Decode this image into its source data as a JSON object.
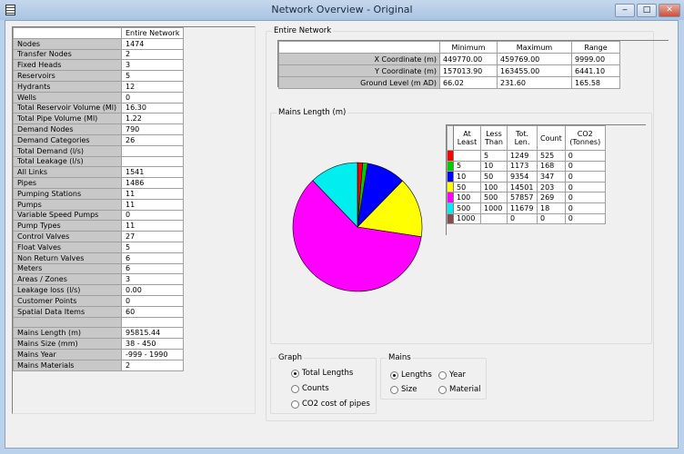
{
  "window": {
    "title": "Network Overview - Original",
    "icon": "table-grid-icon",
    "controls": [
      "minimize",
      "maximize",
      "close"
    ]
  },
  "stats": {
    "header": "Entire Network",
    "rows": [
      [
        "Nodes",
        "1474"
      ],
      [
        "Transfer Nodes",
        "2"
      ],
      [
        "Fixed Heads",
        "3"
      ],
      [
        "Reservoirs",
        "5"
      ],
      [
        "Hydrants",
        "12"
      ],
      [
        "Wells",
        "0"
      ],
      [
        "Total Reservoir Volume (Ml)",
        "16.30"
      ],
      [
        "Total Pipe Volume (Ml)",
        "1.22"
      ],
      [
        "Demand Nodes",
        "790"
      ],
      [
        "Demand Categories",
        "26"
      ],
      [
        "Total Demand (l/s)",
        ""
      ],
      [
        "Total Leakage (l/s)",
        ""
      ],
      [
        "All Links",
        "1541"
      ],
      [
        "Pipes",
        "1486"
      ],
      [
        "Pumping Stations",
        "11"
      ],
      [
        "Pumps",
        "11"
      ],
      [
        "Variable Speed Pumps",
        "0"
      ],
      [
        "Pump Types",
        "11"
      ],
      [
        "Control Valves",
        "27"
      ],
      [
        "Float Valves",
        "5"
      ],
      [
        "Non Return Valves",
        "6"
      ],
      [
        "Meters",
        "6"
      ],
      [
        "Areas / Zones",
        "3"
      ],
      [
        "Leakage loss (l/s)",
        "0.00"
      ],
      [
        "Customer Points",
        "0"
      ],
      [
        "Spatial Data Items",
        "60"
      ],
      [
        "",
        ""
      ],
      [
        "Mains Length (m)",
        "95815.44"
      ],
      [
        "Mains Size (mm)",
        "38 - 450"
      ],
      [
        "Mains Year",
        "-999 - 1990"
      ],
      [
        "Mains Materials",
        "2"
      ]
    ]
  },
  "entire_network": {
    "label": "Entire Network",
    "columns": [
      "Minimum",
      "Maximum",
      "Range"
    ],
    "rows": [
      [
        "X Coordinate (m)",
        "449770.00",
        "459769.00",
        "9999.00"
      ],
      [
        "Y Coordinate (m)",
        "157013.90",
        "163455.00",
        "6441.10"
      ],
      [
        "Ground Level (m AD)",
        "66.02",
        "231.60",
        "165.58"
      ]
    ]
  },
  "mains_length": {
    "label": "Mains Length (m)",
    "columns": [
      "At Least",
      "Less Than",
      "Tot. Len.",
      "Count",
      "CO2 (Tonnes)"
    ],
    "rows": [
      {
        "color": "#ff0000",
        "at_least": "",
        "less_than": "5",
        "tot_len": "1249",
        "count": "525",
        "co2": "0"
      },
      {
        "color": "#00cc00",
        "at_least": "5",
        "less_than": "10",
        "tot_len": "1173",
        "count": "168",
        "co2": "0"
      },
      {
        "color": "#0000ff",
        "at_least": "10",
        "less_than": "50",
        "tot_len": "9354",
        "count": "347",
        "co2": "0"
      },
      {
        "color": "#ffff00",
        "at_least": "50",
        "less_than": "100",
        "tot_len": "14501",
        "count": "203",
        "co2": "0"
      },
      {
        "color": "#ff00ff",
        "at_least": "100",
        "less_than": "500",
        "tot_len": "57857",
        "count": "269",
        "co2": "0"
      },
      {
        "color": "#00eeee",
        "at_least": "500",
        "less_than": "1000",
        "tot_len": "11679",
        "count": "18",
        "co2": "0"
      },
      {
        "color": "#8b4a4a",
        "at_least": "1000",
        "less_than": "",
        "tot_len": "0",
        "count": "0",
        "co2": "0"
      }
    ]
  },
  "chart_data": {
    "type": "pie",
    "values": [
      1249,
      1173,
      9354,
      14501,
      57857,
      11679,
      0
    ],
    "colors": [
      "#ff0000",
      "#00cc00",
      "#0000ff",
      "#ffff00",
      "#ff00ff",
      "#00eeee",
      "#8b4a4a"
    ],
    "categories": [
      "<5",
      "5-10",
      "10-50",
      "50-100",
      "100-500",
      "500-1000",
      ">=1000"
    ]
  },
  "graph": {
    "label": "Graph",
    "options": [
      "Total Lengths",
      "Counts",
      "CO2 cost of pipes"
    ],
    "selected": "Total Lengths"
  },
  "mains": {
    "label": "Mains",
    "options": [
      "Lengths",
      "Year",
      "Size",
      "Material"
    ],
    "selected": "Lengths"
  }
}
